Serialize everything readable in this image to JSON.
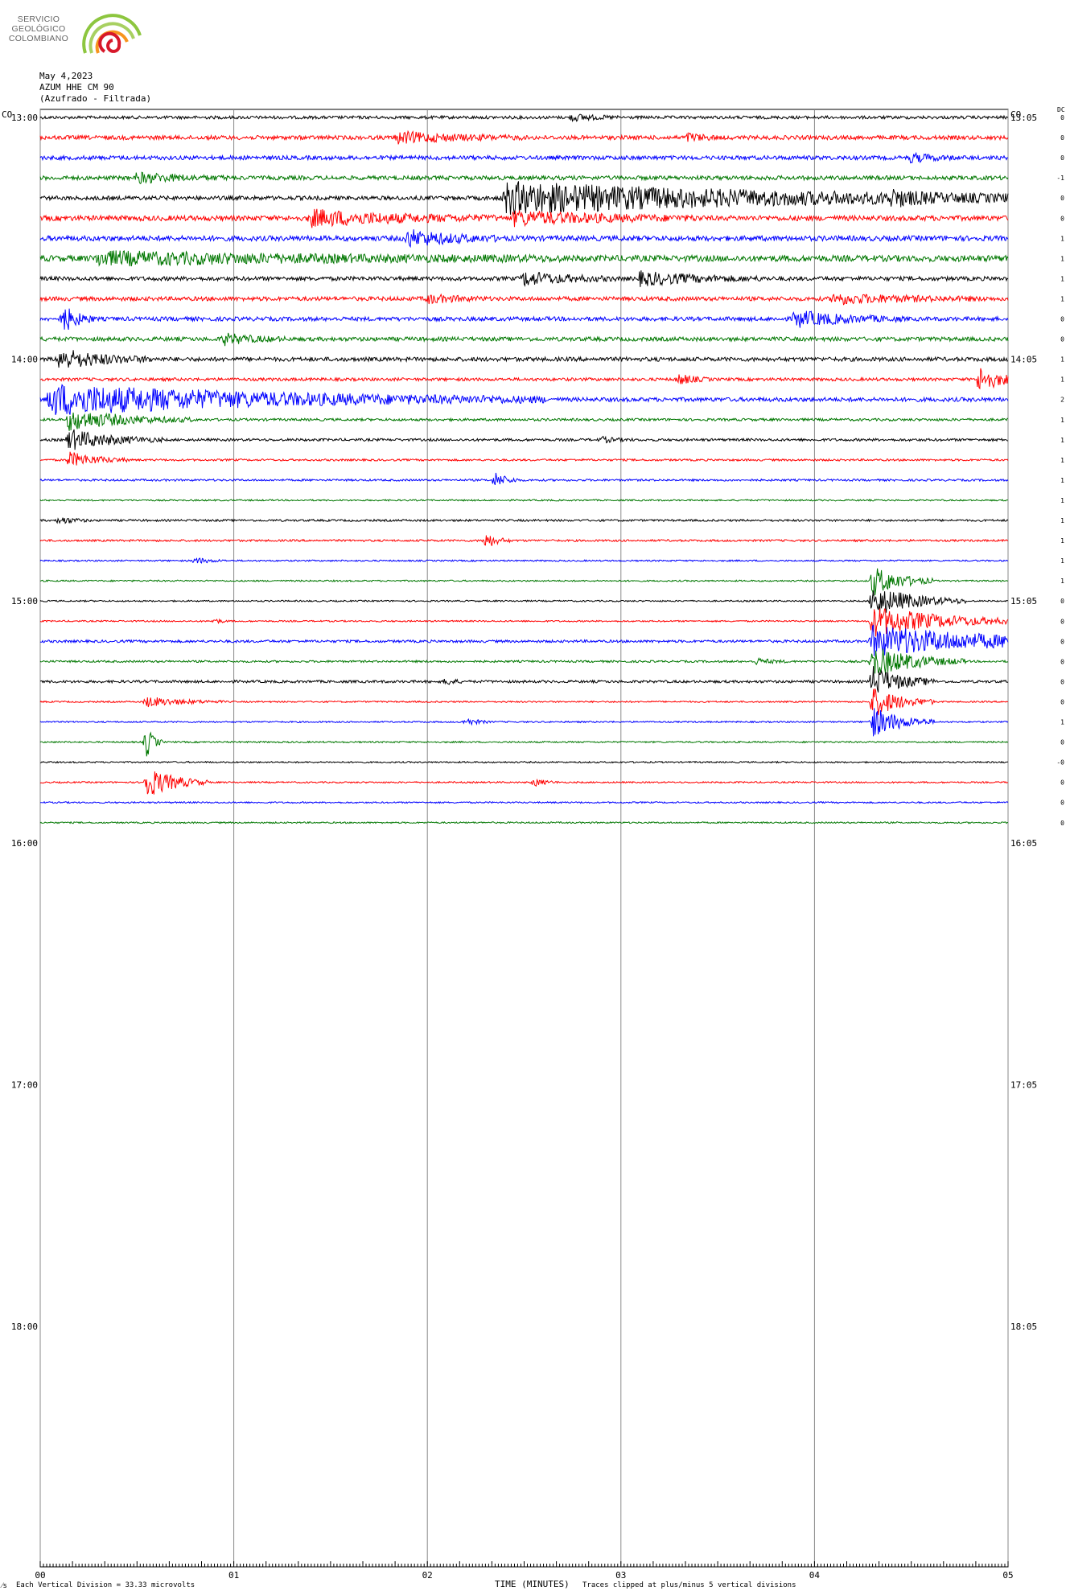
{
  "logo": {
    "line1": "SERVICIO",
    "line2": "GEOLÓGICO",
    "line3": "COLOMBIANO",
    "colors": [
      "#8dc63f",
      "#f7941d",
      "#d7182a"
    ]
  },
  "header": {
    "date": "May 4,2023",
    "station": "AZUM HHE CM 90",
    "subtitle": "(Azufrado - Filtrada)"
  },
  "footer": {
    "scale_text": "Each Vertical Division =   33.33 microvolts",
    "clip_text": "Traces clipped at plus/minus 5 vertical divisions",
    "corner_mark": "⁄s"
  },
  "chart_data": {
    "type": "line",
    "xlabel": "TIME (MINUTES)",
    "x_ticks": [
      "00",
      "01",
      "02",
      "03",
      "04",
      "05"
    ],
    "xlim": [
      0,
      5
    ],
    "left_corner_label": "CO",
    "right_corner_label": "CO",
    "dc_label": "DC",
    "hour_labels_left": [
      "13:00",
      "14:00",
      "15:00",
      "16:00",
      "17:00",
      "18:00"
    ],
    "hour_labels_right": [
      "13:05",
      "14:05",
      "15:05",
      "16:05",
      "17:05",
      "18:05"
    ],
    "trace_interval_minutes": 5,
    "trace_colors": [
      "#000000",
      "#ff0000",
      "#0000ff",
      "#007700"
    ],
    "dc_values": [
      "0",
      "0",
      "0",
      "-1",
      "0",
      "0",
      "1",
      "1",
      "1",
      "1",
      "0",
      "0",
      "1",
      "1",
      "2",
      "1",
      "1",
      "1",
      "1",
      "1",
      "1",
      "1",
      "1",
      "1",
      "0",
      "0",
      "0",
      "0",
      "0",
      "0",
      "1",
      "0",
      "-0",
      "0",
      "0",
      "0"
    ],
    "traces": [
      {
        "start": "13:00",
        "noise": 0.6,
        "events": [
          {
            "t": 2.75,
            "amp": 1.2,
            "dur": 0.15
          }
        ]
      },
      {
        "start": "13:05",
        "noise": 0.8,
        "events": [
          {
            "t": 1.85,
            "amp": 2.0,
            "dur": 0.4
          },
          {
            "t": 3.35,
            "amp": 1.5,
            "dur": 0.1
          }
        ]
      },
      {
        "start": "13:10",
        "noise": 0.8,
        "events": [
          {
            "t": 4.5,
            "amp": 1.5,
            "dur": 0.15
          }
        ]
      },
      {
        "start": "13:15",
        "noise": 0.8,
        "events": [
          {
            "t": 0.5,
            "amp": 1.8,
            "dur": 0.3
          }
        ]
      },
      {
        "start": "13:20",
        "noise": 0.8,
        "events": [
          {
            "t": 2.4,
            "amp": 6.0,
            "dur": 2.1
          },
          {
            "t": 4.4,
            "amp": 2.0,
            "dur": 0.15
          }
        ]
      },
      {
        "start": "13:25",
        "noise": 1.0,
        "events": [
          {
            "t": 1.4,
            "amp": 3.0,
            "dur": 0.6
          },
          {
            "t": 2.45,
            "amp": 2.5,
            "dur": 0.6
          }
        ]
      },
      {
        "start": "13:30",
        "noise": 1.0,
        "events": [
          {
            "t": 1.9,
            "amp": 3.0,
            "dur": 0.3
          }
        ]
      },
      {
        "start": "13:35",
        "noise": 1.2,
        "events": [
          {
            "t": 0.3,
            "amp": 2.2,
            "dur": 1.5
          }
        ]
      },
      {
        "start": "13:40",
        "noise": 0.8,
        "events": [
          {
            "t": 2.5,
            "amp": 2.5,
            "dur": 0.3
          },
          {
            "t": 3.1,
            "amp": 2.5,
            "dur": 0.4
          }
        ]
      },
      {
        "start": "13:45",
        "noise": 0.8,
        "events": [
          {
            "t": 2.0,
            "amp": 1.5,
            "dur": 0.2
          },
          {
            "t": 4.1,
            "amp": 1.8,
            "dur": 0.5
          }
        ]
      },
      {
        "start": "13:50",
        "noise": 0.8,
        "events": [
          {
            "t": 0.12,
            "amp": 5.0,
            "dur": 0.1
          },
          {
            "t": 3.9,
            "amp": 3.0,
            "dur": 0.35
          }
        ]
      },
      {
        "start": "13:55",
        "noise": 0.8,
        "events": [
          {
            "t": 0.95,
            "amp": 2.0,
            "dur": 0.2
          }
        ]
      },
      {
        "start": "14:00",
        "noise": 0.8,
        "events": [
          {
            "t": 0.1,
            "amp": 4.0,
            "dur": 0.3
          }
        ]
      },
      {
        "start": "14:05",
        "noise": 0.6,
        "events": [
          {
            "t": 3.3,
            "amp": 2.0,
            "dur": 0.1
          },
          {
            "t": 4.85,
            "amp": 5.0,
            "dur": 0.15
          }
        ]
      },
      {
        "start": "14:10",
        "noise": 0.8,
        "events": [
          {
            "t": 0.05,
            "amp": 6.0,
            "dur": 1.6
          }
        ]
      },
      {
        "start": "14:15",
        "noise": 0.5,
        "events": [
          {
            "t": 0.15,
            "amp": 4.0,
            "dur": 0.4
          }
        ]
      },
      {
        "start": "14:20",
        "noise": 0.5,
        "events": [
          {
            "t": 0.15,
            "amp": 4.0,
            "dur": 0.3
          },
          {
            "t": 2.9,
            "amp": 1.0,
            "dur": 0.1
          }
        ]
      },
      {
        "start": "14:25",
        "noise": 0.4,
        "events": [
          {
            "t": 0.15,
            "amp": 3.0,
            "dur": 0.2
          }
        ]
      },
      {
        "start": "14:30",
        "noise": 0.4,
        "events": [
          {
            "t": 2.35,
            "amp": 3.0,
            "dur": 0.08
          }
        ]
      },
      {
        "start": "14:35",
        "noise": 0.3,
        "events": []
      },
      {
        "start": "14:40",
        "noise": 0.4,
        "events": [
          {
            "t": 0.1,
            "amp": 1.5,
            "dur": 0.1
          }
        ]
      },
      {
        "start": "14:45",
        "noise": 0.4,
        "events": [
          {
            "t": 2.3,
            "amp": 3.0,
            "dur": 0.08
          }
        ]
      },
      {
        "start": "14:50",
        "noise": 0.3,
        "events": [
          {
            "t": 0.8,
            "amp": 1.2,
            "dur": 0.1
          }
        ]
      },
      {
        "start": "14:55",
        "noise": 0.3,
        "events": [
          {
            "t": 4.3,
            "amp": 6.0,
            "dur": 0.2
          }
        ]
      },
      {
        "start": "15:00",
        "noise": 0.3,
        "events": [
          {
            "t": 4.3,
            "amp": 6.0,
            "dur": 0.3
          }
        ]
      },
      {
        "start": "15:05",
        "noise": 0.3,
        "events": [
          {
            "t": 0.9,
            "amp": 1.0,
            "dur": 0.05
          },
          {
            "t": 4.3,
            "amp": 6.0,
            "dur": 0.5
          }
        ]
      },
      {
        "start": "15:10",
        "noise": 0.5,
        "events": [
          {
            "t": 4.3,
            "amp": 6.0,
            "dur": 0.9
          }
        ]
      },
      {
        "start": "15:15",
        "noise": 0.4,
        "events": [
          {
            "t": 3.7,
            "amp": 1.2,
            "dur": 0.1
          },
          {
            "t": 4.3,
            "amp": 6.0,
            "dur": 0.3
          }
        ]
      },
      {
        "start": "15:20",
        "noise": 0.5,
        "events": [
          {
            "t": 2.1,
            "amp": 1.5,
            "dur": 0.05
          },
          {
            "t": 4.3,
            "amp": 6.0,
            "dur": 0.2
          }
        ]
      },
      {
        "start": "15:25",
        "noise": 0.3,
        "events": [
          {
            "t": 0.55,
            "amp": 2.0,
            "dur": 0.25
          },
          {
            "t": 4.3,
            "amp": 6.0,
            "dur": 0.2
          }
        ]
      },
      {
        "start": "15:30",
        "noise": 0.3,
        "events": [
          {
            "t": 2.2,
            "amp": 1.5,
            "dur": 0.08
          },
          {
            "t": 4.3,
            "amp": 6.0,
            "dur": 0.2
          }
        ]
      },
      {
        "start": "15:35",
        "noise": 0.3,
        "events": [
          {
            "t": 0.55,
            "amp": 6.0,
            "dur": 0.05
          }
        ]
      },
      {
        "start": "15:40",
        "noise": 0.3,
        "events": []
      },
      {
        "start": "15:45",
        "noise": 0.3,
        "events": [
          {
            "t": 0.55,
            "amp": 6.0,
            "dur": 0.2
          },
          {
            "t": 2.55,
            "amp": 1.5,
            "dur": 0.08
          }
        ]
      },
      {
        "start": "15:50",
        "noise": 0.3,
        "events": []
      },
      {
        "start": "15:55",
        "noise": 0.3,
        "events": []
      }
    ]
  }
}
